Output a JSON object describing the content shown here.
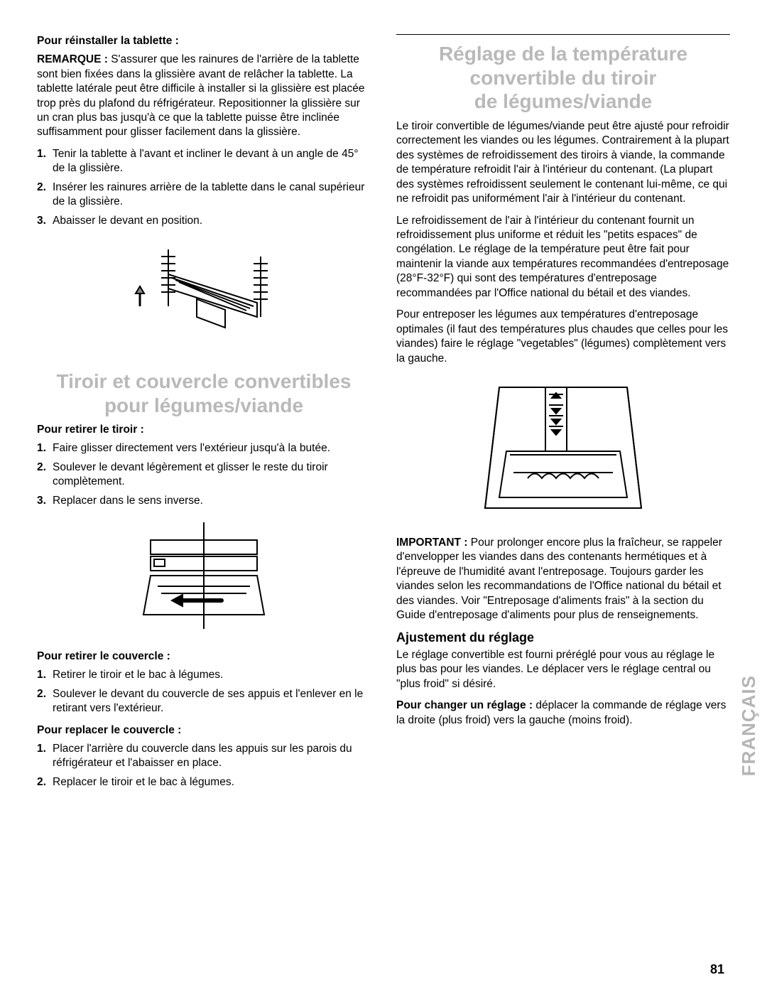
{
  "left": {
    "reinstall_head": "Pour réinstaller la tablette :",
    "remarque_bold": "REMARQUE : ",
    "remarque_text": "S'assurer que les rainures de l'arrière de la tablette sont bien fixées dans la glissière avant de relâcher la tablette. La tablette latérale peut être difficile à installer si la glissière est placée trop près du plafond du réfrigérateur. Repositionner la glissière sur un cran plus bas jusqu'à ce que la tablette puisse être inclinée suffisamment pour glisser facilement dans la glissière.",
    "reinstall_steps": [
      "Tenir la tablette à l'avant et incliner le devant à un angle de 45° de la glissière.",
      "Insérer les rainures arrière de la tablette dans le canal supérieur de la glissière.",
      "Abaisser le devant en position."
    ],
    "ghost1_l1": "Tiroir et couvercle convertibles",
    "ghost1_l2": "pour légumes/viande",
    "retire_drawer_head": "Pour retirer le tiroir :",
    "retire_drawer_steps": [
      "Faire glisser directement vers l'extérieur jusqu'à la butée.",
      "Soulever le devant légèrement et glisser le reste du tiroir complètement.",
      "Replacer dans le sens inverse."
    ],
    "retire_cover_head": "Pour retirer le couvercle :",
    "retire_cover_steps": [
      "Retirer le tiroir et le bac à légumes.",
      "Soulever le devant du couvercle de ses appuis et l'enlever en le retirant vers l'extérieur."
    ],
    "replace_cover_head": "Pour replacer le couvercle :",
    "replace_cover_steps": [
      "Placer l'arrière du couvercle dans les appuis sur les parois du réfrigérateur et l'abaisser en place.",
      "Replacer le tiroir et le bac à légumes."
    ]
  },
  "right": {
    "ghost2_l1": "Réglage de la température",
    "ghost2_l2": "convertible du tiroir",
    "ghost2_l3": "de légumes/viande",
    "p1": "Le tiroir convertible de légumes/viande peut être ajusté pour refroidir correctement les viandes ou les légumes. Contrairement à la plupart des systèmes de refroidissement des tiroirs à viande, la commande de température refroidit l'air à l'intérieur du contenant. (La plupart des systèmes refroidissent seulement le contenant lui-même, ce qui ne refroidit pas uniformément l'air à l'intérieur du contenant.",
    "p2": "Le refroidissement de l'air à l'intérieur du contenant fournit un refroidissement plus uniforme et réduit les \"petits espaces\" de congélation. Le réglage de la température peut être fait pour maintenir la viande aux températures recommandées d'entreposage (28°F-32°F) qui sont des températures d'entreposage recommandées par l'Office national du bétail et des viandes.",
    "p3": "Pour entreposer les légumes aux températures d'entreposage optimales (il faut des températures plus chaudes que celles pour les viandes) faire le réglage \"vegetables\" (légumes) complètement vers la gauche.",
    "important_bold": "IMPORTANT : ",
    "important_text": "Pour prolonger encore plus la fraîcheur, se rappeler d'envelopper les viandes dans des contenants hermétiques et à l'épreuve de l'humidité avant l'entreposage. Toujours garder les viandes selon les recommandations de l'Office national du bétail et des viandes. Voir \"Entreposage d'aliments frais\" à la section du Guide d'entreposage d'aliments pour plus de renseignements.",
    "adjust_head": "Ajustement du réglage",
    "adjust_p": "Le réglage convertible est fourni préréglé pour vous au réglage le plus bas pour les viandes. Le déplacer vers le réglage central ou \"plus froid\" si désiré.",
    "change_bold": "Pour changer un réglage : ",
    "change_text": "déplacer la commande de réglage vers la droite (plus froid) vers la gauche (moins froid)."
  },
  "page_number": "81",
  "side_label": "FRANÇAIS",
  "colors": {
    "ghost": "#b9b9b9",
    "text": "#000000",
    "bg": "#ffffff"
  }
}
